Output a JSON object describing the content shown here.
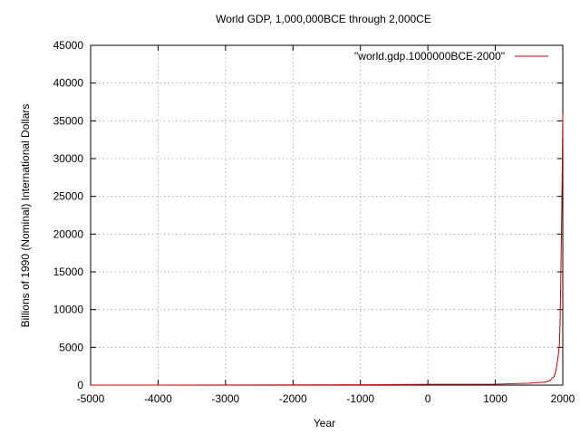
{
  "chart_data": {
    "type": "line",
    "title": "World GDP, 1,000,000BCE through 2,000CE",
    "xlabel": "Year",
    "ylabel": "Billions of 1990 (Nominal) International Dollars",
    "xlim": [
      -5000,
      2000
    ],
    "ylim": [
      0,
      45000
    ],
    "x_ticks": [
      -5000,
      -4000,
      -3000,
      -2000,
      -1000,
      0,
      1000,
      2000
    ],
    "y_ticks": [
      0,
      5000,
      10000,
      15000,
      20000,
      25000,
      30000,
      35000,
      40000,
      45000
    ],
    "grid": true,
    "legend_position": "top-right",
    "series": [
      {
        "name": "\"world.gdp.1000000BCE-2000\"",
        "color": "#c00000",
        "x": [
          -5000,
          -4000,
          -3000,
          -2000,
          -1000,
          0,
          1000,
          1500,
          1600,
          1700,
          1750,
          1800,
          1820,
          1850,
          1870,
          1900,
          1913,
          1929,
          1940,
          1950,
          1960,
          1970,
          1973,
          1980,
          1990,
          2000
        ],
        "y": [
          5,
          7,
          16,
          27,
          50,
          102,
          121,
          248,
          331,
          371,
          450,
          586,
          695,
          1000,
          1110,
          1975,
          2700,
          3700,
          4500,
          5340,
          8400,
          13800,
          16000,
          20000,
          27000,
          36000
        ]
      }
    ]
  }
}
